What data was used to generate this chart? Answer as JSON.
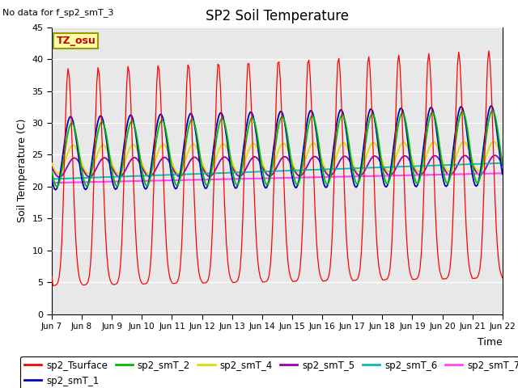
{
  "title": "SP2 Soil Temperature",
  "no_data_text": "No data for f_sp2_smT_3",
  "tz_label": "TZ_osu",
  "ylabel": "Soil Temperature (C)",
  "xlabel": "Time",
  "ylim": [
    0,
    45
  ],
  "bg_color": "#e8e8e8",
  "fig_bg": "#ffffff",
  "legend": [
    {
      "label": "sp2_Tsurface",
      "color": "#ff0000"
    },
    {
      "label": "sp2_smT_1",
      "color": "#0000bb"
    },
    {
      "label": "sp2_smT_2",
      "color": "#00bb00"
    },
    {
      "label": "sp2_smT_4",
      "color": "#dddd00"
    },
    {
      "label": "sp2_smT_5",
      "color": "#9900aa"
    },
    {
      "label": "sp2_smT_6",
      "color": "#00bbbb"
    },
    {
      "label": "sp2_smT_7",
      "color": "#ff44ff"
    }
  ],
  "xtick_labels": [
    "Jun 7",
    "Jun 8",
    "Jun 9",
    "Jun 10",
    "Jun 11",
    "Jun 12",
    "Jun 13",
    "Jun 14",
    "Jun 15",
    "Jun 16",
    "Jun 17",
    "Jun 18",
    "Jun 19",
    "Jun 20",
    "Jun 21",
    "Jun 22"
  ],
  "xtick_positions": [
    0,
    24,
    48,
    72,
    96,
    120,
    144,
    168,
    192,
    216,
    240,
    264,
    288,
    312,
    336,
    360
  ],
  "ytick_labels": [
    "0",
    "5",
    "10",
    "15",
    "20",
    "25",
    "30",
    "35",
    "40",
    "45"
  ],
  "ytick_positions": [
    0,
    5,
    10,
    15,
    20,
    25,
    30,
    35,
    40,
    45
  ]
}
